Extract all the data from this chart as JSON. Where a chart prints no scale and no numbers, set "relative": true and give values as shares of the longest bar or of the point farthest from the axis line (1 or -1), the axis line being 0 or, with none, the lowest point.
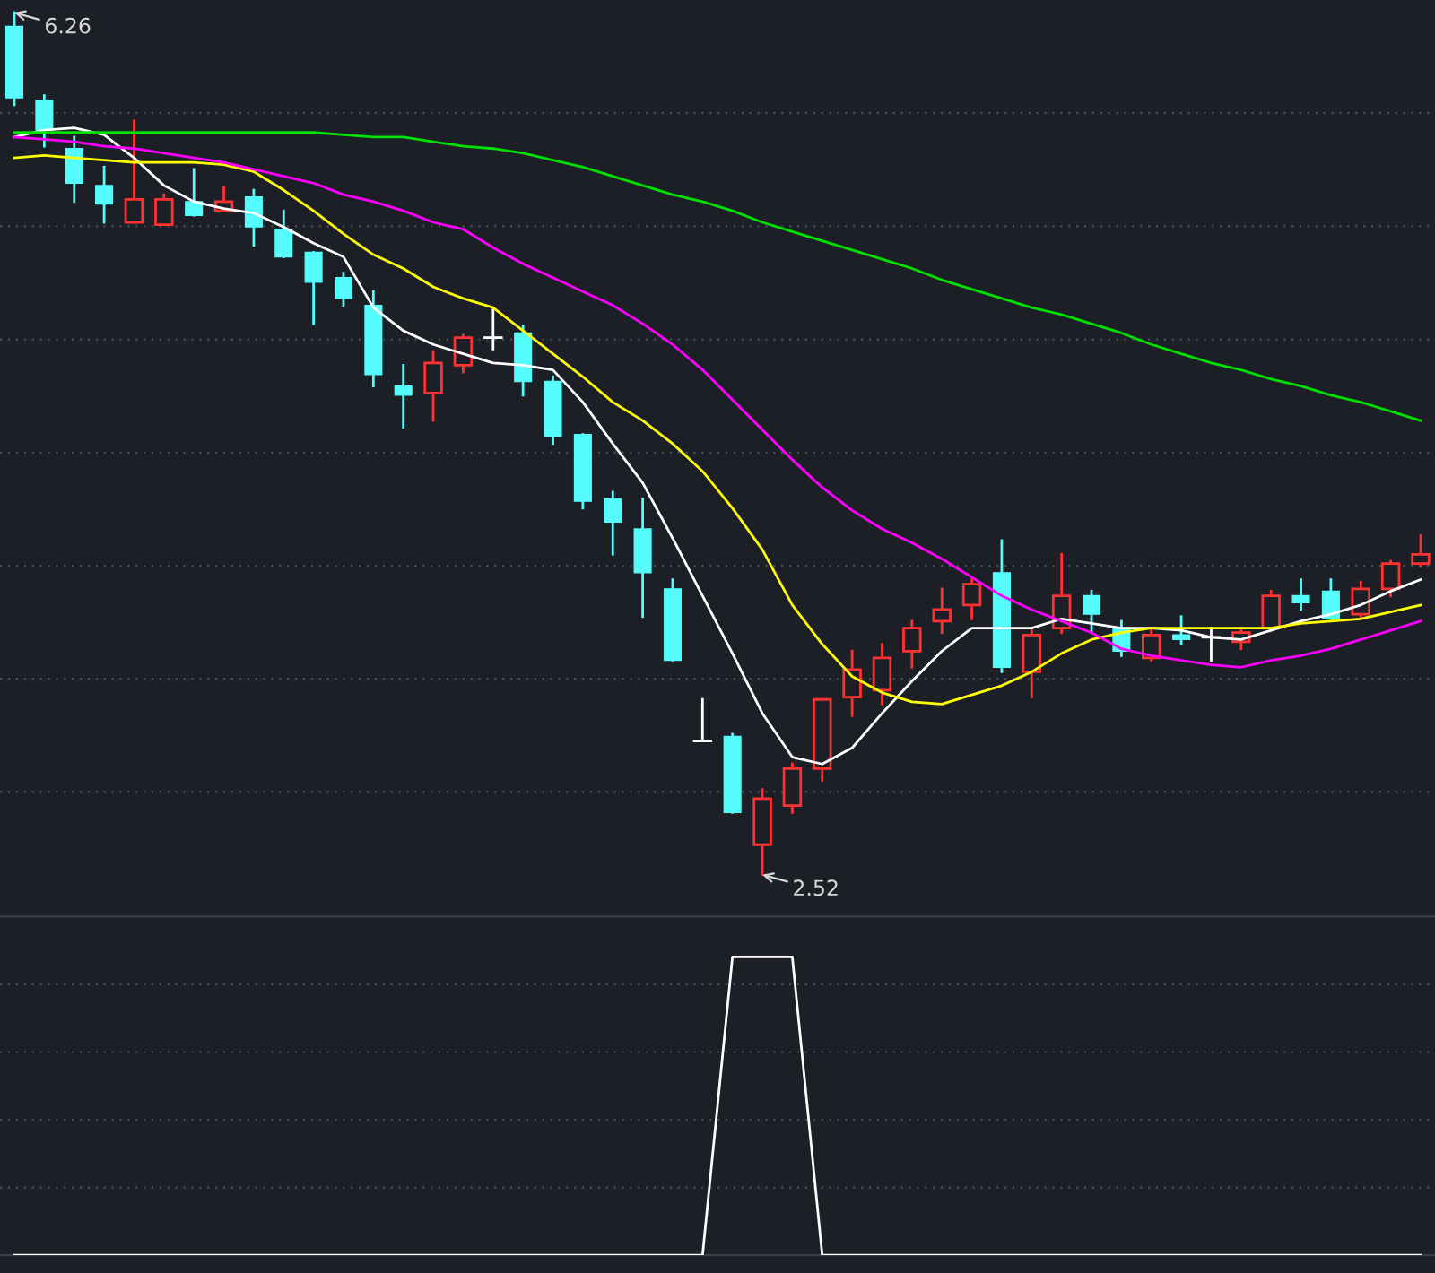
{
  "chart_data": [
    {
      "type": "candlestick",
      "categories": [
        null,
        null,
        null,
        null,
        null,
        null,
        null,
        null,
        null,
        null,
        null,
        null,
        null,
        null,
        null,
        null,
        null,
        null,
        null,
        null,
        null,
        null,
        null,
        null,
        null,
        null,
        null,
        null,
        null,
        null,
        null,
        null,
        null,
        null,
        null,
        null,
        null,
        null,
        null,
        null,
        null,
        null,
        null,
        null,
        null,
        null,
        null,
        null
      ],
      "ohlc": [
        [
          6.2,
          6.26,
          5.86,
          5.89
        ],
        [
          5.88,
          5.9,
          5.68,
          5.75
        ],
        [
          5.67,
          5.72,
          5.44,
          5.52
        ],
        [
          5.51,
          5.59,
          5.35,
          5.43
        ],
        [
          5.35,
          5.79,
          5.35,
          5.45
        ],
        [
          5.34,
          5.47,
          5.34,
          5.45
        ],
        [
          5.44,
          5.58,
          5.38,
          5.38
        ],
        [
          5.4,
          5.5,
          5.4,
          5.44
        ],
        [
          5.46,
          5.49,
          5.25,
          5.33
        ],
        [
          5.32,
          5.4,
          5.2,
          5.2
        ],
        [
          5.22,
          5.22,
          4.91,
          5.09
        ],
        [
          5.11,
          5.13,
          4.99,
          5.02
        ],
        [
          4.99,
          5.05,
          4.64,
          4.69
        ],
        [
          4.64,
          4.73,
          4.46,
          4.6
        ],
        [
          4.61,
          4.79,
          4.49,
          4.74
        ],
        [
          4.73,
          4.86,
          4.7,
          4.85
        ],
        [
          4.85,
          4.97,
          4.8,
          4.85
        ],
        [
          4.87,
          4.9,
          4.6,
          4.66
        ],
        [
          4.66,
          4.68,
          4.39,
          4.42
        ],
        [
          4.43,
          4.43,
          4.11,
          4.14
        ],
        [
          4.15,
          4.18,
          3.91,
          4.05
        ],
        [
          4.02,
          4.15,
          3.64,
          3.83
        ],
        [
          3.76,
          3.8,
          3.45,
          3.45
        ],
        [
          3.1,
          3.28,
          3.1,
          3.1
        ],
        [
          3.12,
          3.13,
          2.79,
          2.79
        ],
        [
          2.65,
          2.89,
          2.52,
          2.85
        ],
        [
          2.82,
          3.0,
          2.79,
          2.98
        ],
        [
          2.98,
          3.28,
          2.93,
          3.28
        ],
        [
          3.29,
          3.49,
          3.21,
          3.41
        ],
        [
          3.32,
          3.52,
          3.26,
          3.46
        ],
        [
          3.49,
          3.62,
          3.42,
          3.59
        ],
        [
          3.62,
          3.76,
          3.57,
          3.67
        ],
        [
          3.69,
          3.8,
          3.63,
          3.78
        ],
        [
          3.83,
          3.97,
          3.4,
          3.42
        ],
        [
          3.4,
          3.58,
          3.29,
          3.56
        ],
        [
          3.59,
          3.91,
          3.57,
          3.73
        ],
        [
          3.73,
          3.75,
          3.57,
          3.65
        ],
        [
          3.59,
          3.62,
          3.47,
          3.49
        ],
        [
          3.46,
          3.58,
          3.45,
          3.56
        ],
        [
          3.56,
          3.64,
          3.52,
          3.54
        ],
        [
          3.55,
          3.59,
          3.45,
          3.55
        ],
        [
          3.53,
          3.59,
          3.5,
          3.57
        ],
        [
          3.59,
          3.75,
          3.58,
          3.73
        ],
        [
          3.73,
          3.8,
          3.67,
          3.7
        ],
        [
          3.75,
          3.8,
          3.63,
          3.63
        ],
        [
          3.65,
          3.79,
          3.63,
          3.76
        ],
        [
          3.76,
          3.88,
          3.73,
          3.87
        ],
        [
          3.87,
          3.99,
          3.86,
          3.91
        ]
      ],
      "colors": [
        "#54fcfc",
        "#54fcfc",
        "#54fcfc",
        "#54fcfc",
        "#ff3232",
        "#ff3232",
        "#54fcfc",
        "#ff3232",
        "#54fcfc",
        "#54fcfc",
        "#54fcfc",
        "#54fcfc",
        "#54fcfc",
        "#54fcfc",
        "#ff3232",
        "#ff3232",
        "#ffffff",
        "#54fcfc",
        "#54fcfc",
        "#54fcfc",
        "#54fcfc",
        "#54fcfc",
        "#54fcfc",
        "#ffffff",
        "#54fcfc",
        "#ff3232",
        "#ff3232",
        "#ff3232",
        "#ff3232",
        "#ff3232",
        "#ff3232",
        "#ff3232",
        "#ff3232",
        "#54fcfc",
        "#ff3232",
        "#ff3232",
        "#54fcfc",
        "#54fcfc",
        "#ff3232",
        "#54fcfc",
        "#ffffff",
        "#ff3232",
        "#ff3232",
        "#54fcfc",
        "#54fcfc",
        "#ff3232",
        "#ff3232",
        "#ff3232"
      ],
      "series": [
        {
          "type": "line",
          "color": "#ffffff",
          "values": [
            5.72,
            5.75,
            5.76,
            5.73,
            5.63,
            5.51,
            5.44,
            5.41,
            5.39,
            5.33,
            5.26,
            5.2,
            4.98,
            4.88,
            4.82,
            4.78,
            4.74,
            4.73,
            4.71,
            4.57,
            4.39,
            4.22,
            3.98,
            3.73,
            3.48,
            3.22,
            3.03,
            3.0,
            3.07,
            3.22,
            3.36,
            3.49,
            3.59,
            3.59,
            3.59,
            3.63,
            3.61,
            3.59,
            3.59,
            3.58,
            3.55,
            3.54,
            3.58,
            3.62,
            3.65,
            3.69,
            3.75,
            3.8
          ]
        },
        {
          "type": "line",
          "color": "#ffff00",
          "values": [
            5.63,
            5.64,
            5.63,
            5.62,
            5.61,
            5.61,
            5.61,
            5.6,
            5.57,
            5.49,
            5.4,
            5.3,
            5.21,
            5.15,
            5.07,
            5.02,
            4.98,
            4.88,
            4.78,
            4.68,
            4.57,
            4.49,
            4.39,
            4.27,
            4.11,
            3.93,
            3.69,
            3.52,
            3.38,
            3.31,
            3.27,
            3.26,
            3.3,
            3.34,
            3.4,
            3.48,
            3.54,
            3.57,
            3.59,
            3.59,
            3.59,
            3.59,
            3.59,
            3.61,
            3.62,
            3.63,
            3.66,
            3.69
          ]
        },
        {
          "type": "line",
          "color": "#ff00ff",
          "values": [
            5.72,
            5.71,
            5.7,
            5.68,
            5.67,
            5.65,
            5.63,
            5.61,
            5.58,
            5.55,
            5.52,
            5.47,
            5.44,
            5.4,
            5.35,
            5.32,
            5.24,
            5.17,
            5.11,
            5.05,
            4.99,
            4.91,
            4.82,
            4.71,
            4.58,
            4.45,
            4.32,
            4.2,
            4.1,
            4.02,
            3.96,
            3.89,
            3.81,
            3.73,
            3.67,
            3.62,
            3.57,
            3.5,
            3.47,
            3.45,
            3.43,
            3.42,
            3.45,
            3.47,
            3.5,
            3.54,
            3.58,
            3.62
          ]
        },
        {
          "type": "line",
          "color": "#00e000",
          "values": [
            5.74,
            5.74,
            5.74,
            5.74,
            5.74,
            5.74,
            5.74,
            5.74,
            5.74,
            5.74,
            5.74,
            5.73,
            5.72,
            5.72,
            5.7,
            5.68,
            5.67,
            5.65,
            5.62,
            5.59,
            5.55,
            5.51,
            5.47,
            5.44,
            5.4,
            5.35,
            5.31,
            5.27,
            5.23,
            5.19,
            5.15,
            5.1,
            5.06,
            5.02,
            4.98,
            4.95,
            4.91,
            4.87,
            4.82,
            4.78,
            4.74,
            4.71,
            4.67,
            4.64,
            4.6,
            4.57,
            4.53,
            4.49
          ]
        }
      ],
      "annotations": [
        "6.26",
        "2.52"
      ],
      "grid": "y"
    },
    {
      "type": "line",
      "categories": [
        null,
        null,
        null,
        null,
        null,
        null,
        null,
        null,
        null,
        null,
        null,
        null,
        null,
        null,
        null,
        null,
        null,
        null,
        null,
        null,
        null,
        null,
        null,
        null,
        null,
        null,
        null,
        null,
        null,
        null,
        null,
        null,
        null,
        null,
        null,
        null,
        null,
        null,
        null,
        null,
        null,
        null,
        null,
        null,
        null,
        null,
        null,
        null
      ],
      "relative": true,
      "series": [
        {
          "color": "#ffffff",
          "values": [
            0,
            0,
            0,
            0,
            0,
            0,
            0,
            0,
            0,
            0,
            0,
            0,
            0,
            0,
            0,
            0,
            0,
            0,
            0,
            0,
            0,
            0,
            0,
            0,
            1,
            1,
            1,
            0,
            0,
            0,
            0,
            0,
            0,
            0,
            0,
            0,
            0,
            0,
            0,
            0,
            0,
            0,
            0,
            0,
            0,
            0,
            0,
            0
          ]
        }
      ],
      "grid": "y"
    }
  ]
}
